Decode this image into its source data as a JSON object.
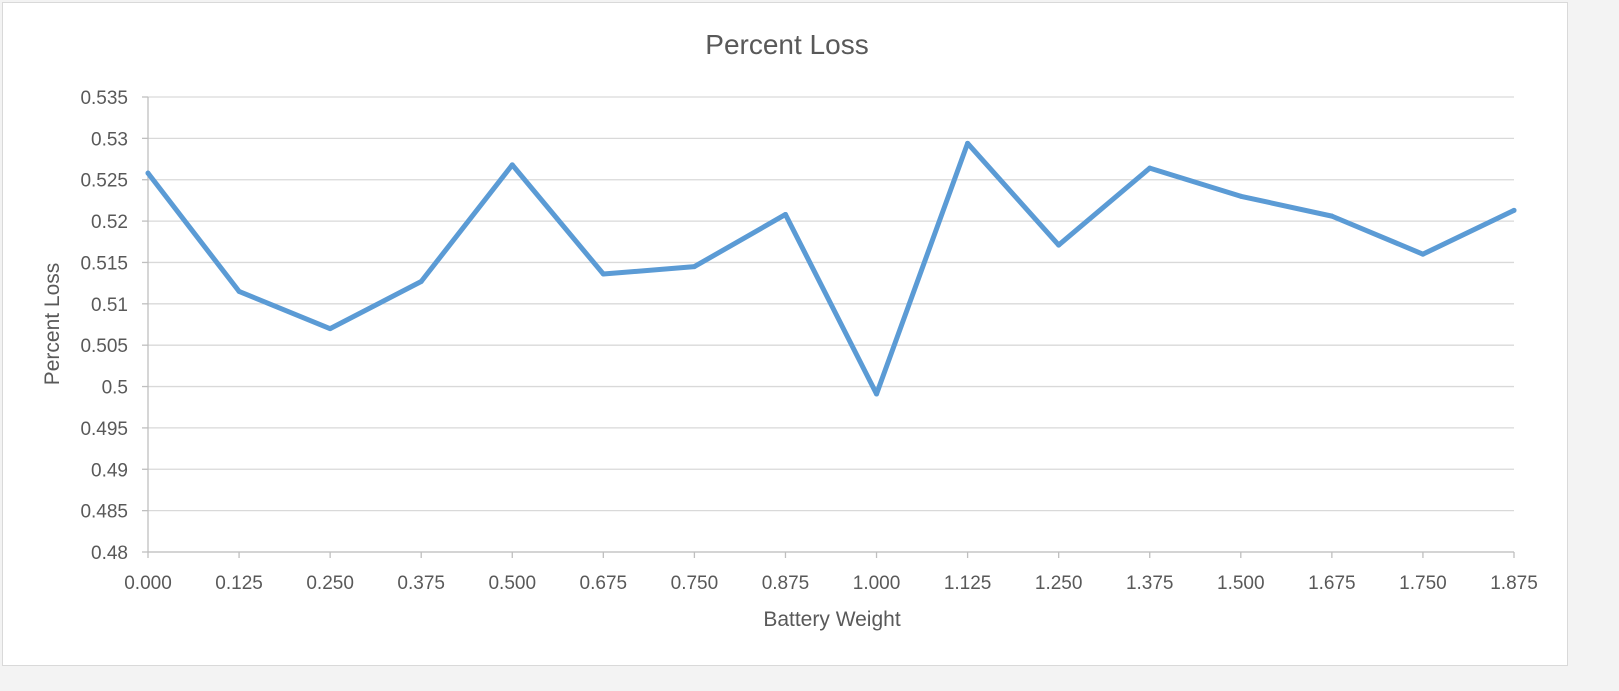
{
  "chart_data": {
    "type": "line",
    "title": "Percent Loss",
    "xlabel": "Battery Weight",
    "ylabel": "Percent Loss",
    "categories": [
      "0.000",
      "0.125",
      "0.250",
      "0.375",
      "0.500",
      "0.675",
      "0.750",
      "0.875",
      "1.000",
      "1.125",
      "1.250",
      "1.375",
      "1.500",
      "1.675",
      "1.750",
      "1.875"
    ],
    "series": [
      {
        "values": [
          0.5258,
          0.5115,
          0.507,
          0.5127,
          0.5268,
          0.5136,
          0.5145,
          0.5208,
          0.4991,
          0.5294,
          0.5171,
          0.5264,
          0.523,
          0.5206,
          0.516,
          0.5213
        ],
        "color": "#5b9bd5"
      }
    ],
    "ylim": [
      0.48,
      0.535
    ],
    "yticks": [
      "0.48",
      "0.485",
      "0.49",
      "0.495",
      "0.5",
      "0.505",
      "0.51",
      "0.515",
      "0.52",
      "0.525",
      "0.53",
      "0.535"
    ],
    "grid": true,
    "legend": "none"
  }
}
